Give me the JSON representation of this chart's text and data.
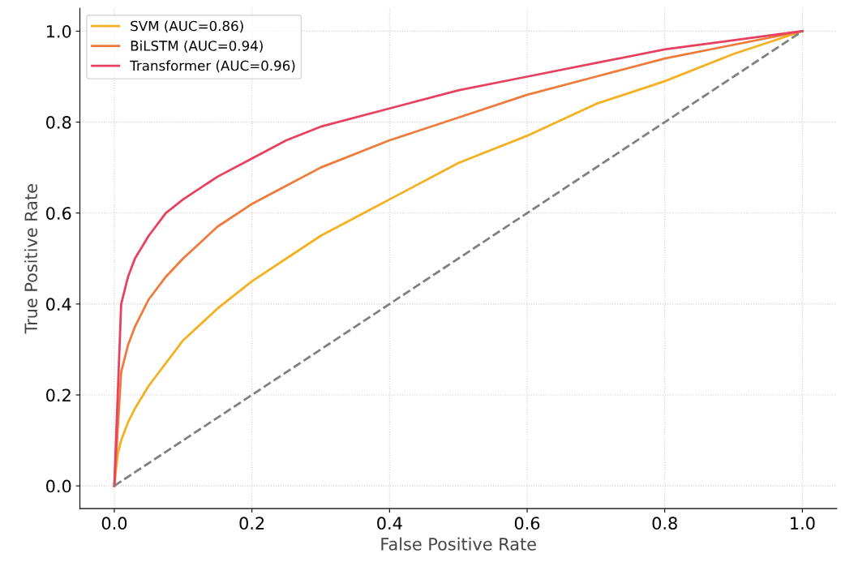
{
  "chart_data": {
    "type": "line",
    "xlabel": "False Positive Rate",
    "ylabel": "True Positive Rate",
    "xlim": [
      -0.05,
      1.05
    ],
    "ylim": [
      -0.05,
      1.05
    ],
    "xticks": [
      {
        "value": 0,
        "label": "0.0"
      },
      {
        "value": 0.2,
        "label": "0.2"
      },
      {
        "value": 0.4,
        "label": "0.4"
      },
      {
        "value": 0.6,
        "label": "0.6"
      },
      {
        "value": 0.8,
        "label": "0.8"
      },
      {
        "value": 1,
        "label": "1.0"
      }
    ],
    "yticks": [
      {
        "value": 0,
        "label": "0.0"
      },
      {
        "value": 0.2,
        "label": "0.2"
      },
      {
        "value": 0.4,
        "label": "0.4"
      },
      {
        "value": 0.6,
        "label": "0.6"
      },
      {
        "value": 0.8,
        "label": "0.8"
      },
      {
        "value": 1,
        "label": "1.0"
      }
    ],
    "grid": true,
    "legend": "top left",
    "line_style": "solid",
    "marker": "none",
    "series": [
      {
        "name": "SVM (AUC=0.86)",
        "color": "#f4b01e",
        "x": [
          0,
          0.005,
          0.01,
          0.02,
          0.03,
          0.05,
          0.075,
          0.1,
          0.15,
          0.2,
          0.25,
          0.3,
          0.4,
          0.5,
          0.6,
          0.7,
          0.8,
          0.9,
          1
        ],
        "values": [
          0,
          0.07,
          0.1,
          0.14,
          0.17,
          0.22,
          0.27,
          0.32,
          0.39,
          0.45,
          0.5,
          0.55,
          0.63,
          0.71,
          0.77,
          0.84,
          0.89,
          0.95,
          1
        ]
      },
      {
        "name": "BiLSTM (AUC=0.94)",
        "color": "#ee7a3c",
        "x": [
          0,
          0.01,
          0.02,
          0.03,
          0.05,
          0.075,
          0.1,
          0.15,
          0.2,
          0.25,
          0.3,
          0.4,
          0.5,
          0.6,
          0.7,
          0.8,
          0.9,
          1
        ],
        "values": [
          0,
          0.25,
          0.31,
          0.35,
          0.41,
          0.46,
          0.5,
          0.57,
          0.62,
          0.66,
          0.7,
          0.76,
          0.81,
          0.86,
          0.9,
          0.94,
          0.97,
          1
        ]
      },
      {
        "name": "Transformer (AUC=0.96)",
        "color": "#e8405f",
        "x": [
          0,
          0.01,
          0.02,
          0.03,
          0.05,
          0.075,
          0.1,
          0.15,
          0.2,
          0.25,
          0.3,
          0.4,
          0.5,
          0.6,
          0.7,
          0.8,
          0.9,
          1
        ],
        "values": [
          0,
          0.4,
          0.46,
          0.5,
          0.55,
          0.6,
          0.63,
          0.68,
          0.72,
          0.76,
          0.79,
          0.83,
          0.87,
          0.9,
          0.93,
          0.96,
          0.98,
          1
        ]
      },
      {
        "color": "#808080",
        "line_style": "dashed",
        "x": [
          0,
          1
        ],
        "values": [
          0,
          1
        ]
      }
    ]
  }
}
